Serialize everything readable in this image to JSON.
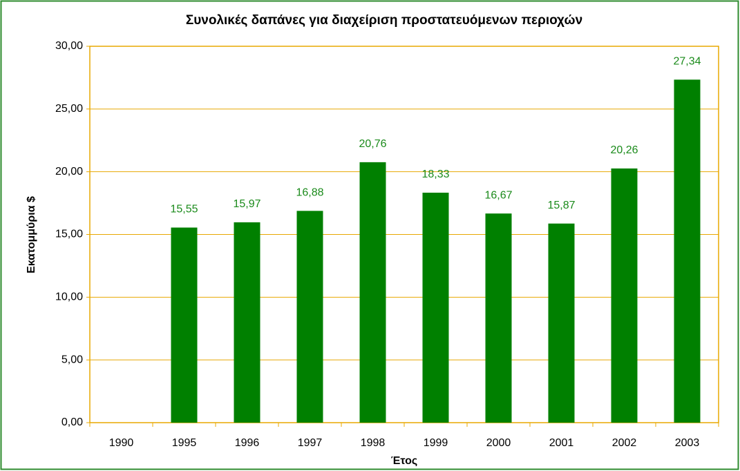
{
  "chart_data": {
    "type": "bar",
    "title": "Συνολικές δαπάνες για διαχείριση προστατευόμενων περιοχών",
    "x_label": "Έτος",
    "y_label": "Εκατομμύρια $",
    "categories": [
      "1990",
      "1995",
      "1996",
      "1997",
      "1998",
      "1999",
      "2000",
      "2001",
      "2002",
      "2003"
    ],
    "values": [
      null,
      15.55,
      15.97,
      16.88,
      20.76,
      18.33,
      16.67,
      15.87,
      20.26,
      27.34
    ],
    "value_labels": [
      null,
      "15,55",
      "15,97",
      "16,88",
      "20,76",
      "18,33",
      "16,67",
      "15,87",
      "20,26",
      "27,34"
    ],
    "color": "#008000",
    "label_color": "#1a8a1a",
    "ylim": [
      0,
      30
    ],
    "yticks": [
      {
        "value": 0,
        "label": "0,00"
      },
      {
        "value": 5,
        "label": "5,00"
      },
      {
        "value": 10,
        "label": "10,00"
      },
      {
        "value": 15,
        "label": "15,00"
      },
      {
        "value": 20,
        "label": "20,00"
      },
      {
        "value": 25,
        "label": "25,00"
      },
      {
        "value": 30,
        "label": "30,00"
      }
    ],
    "grid": true
  }
}
